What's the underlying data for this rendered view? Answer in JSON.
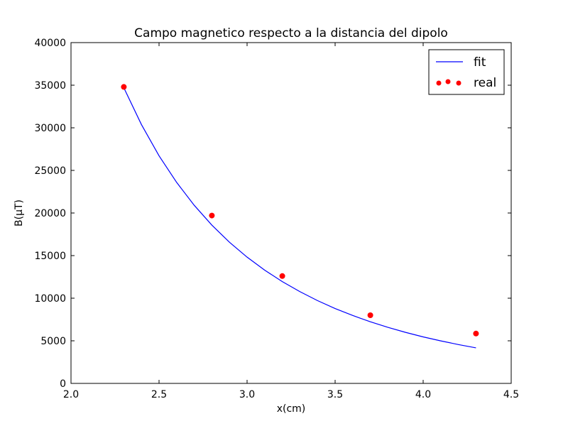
{
  "chart_data": {
    "type": "scatter",
    "title": "Campo magnetico respecto a la distancia del dipolo",
    "xlabel": "x(cm)",
    "ylabel": "B(μT)",
    "xlim": [
      2.0,
      4.5
    ],
    "ylim": [
      0,
      40000
    ],
    "xticks": [
      "2.0",
      "2.5",
      "3.0",
      "3.5",
      "4.0",
      "4.5"
    ],
    "yticks": [
      "0",
      "5000",
      "10000",
      "15000",
      "20000",
      "25000",
      "30000",
      "35000",
      "40000"
    ],
    "grid": false,
    "legend_position": "top-right",
    "series": [
      {
        "name": "fit",
        "kind": "line",
        "color": "#0000ff",
        "x": [
          2.3,
          2.4,
          2.5,
          2.6,
          2.7,
          2.8,
          2.9,
          3.0,
          3.1,
          3.2,
          3.3,
          3.4,
          3.5,
          3.6,
          3.7,
          3.8,
          3.9,
          4.0,
          4.1,
          4.2,
          4.3
        ],
        "y": [
          34700,
          30380,
          26710,
          23590,
          20900,
          18580,
          16570,
          14820,
          13290,
          11950,
          10770,
          9720,
          8790,
          7970,
          7230,
          6580,
          5990,
          5460,
          4990,
          4560,
          4170
        ]
      },
      {
        "name": "real",
        "kind": "scatter",
        "color": "#ff0000",
        "x": [
          2.3,
          2.8,
          3.2,
          3.7,
          4.3
        ],
        "y": [
          34800,
          19700,
          12600,
          8000,
          5850
        ]
      }
    ]
  }
}
